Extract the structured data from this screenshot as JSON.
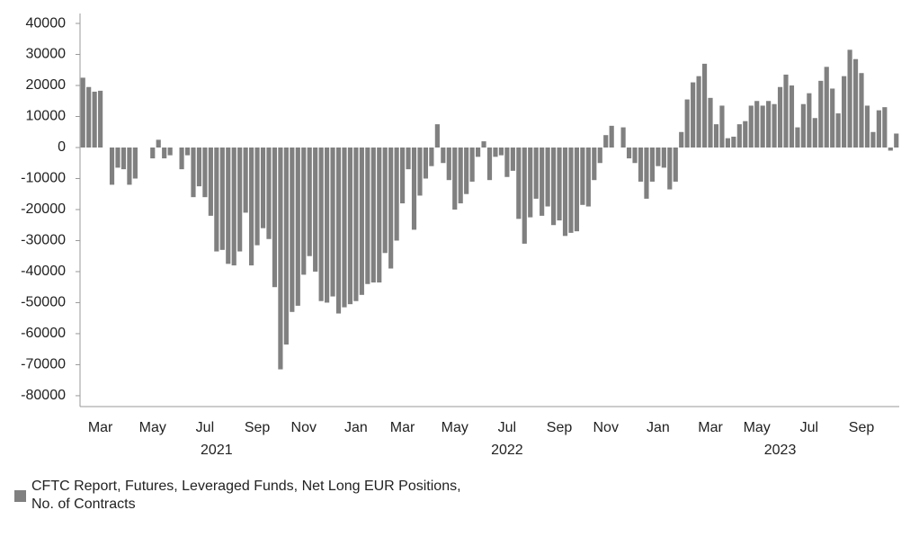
{
  "chart_data": {
    "type": "bar",
    "series": [
      {
        "name": "CFTC Report, Futures, Leveraged Funds, Net Long EUR Positions, No. of Contracts",
        "color": "#808080",
        "values": [
          22500,
          19500,
          18000,
          18300,
          0,
          -12000,
          -6500,
          -7000,
          -12000,
          -10000,
          0,
          0,
          -3500,
          2500,
          -3500,
          -2500,
          0,
          -7000,
          -2500,
          -16000,
          -12500,
          -16000,
          -22000,
          -33500,
          -33000,
          -37500,
          -38000,
          -33500,
          -21000,
          -38000,
          -31500,
          -26000,
          -29500,
          -45000,
          -71500,
          -63500,
          -53000,
          -51000,
          -41000,
          -35000,
          -40000,
          -49500,
          -50000,
          -48000,
          -53500,
          -51500,
          -50500,
          -49500,
          -47500,
          -44000,
          -43500,
          -43500,
          -34000,
          -39000,
          -30000,
          -18000,
          -7000,
          -26500,
          -15500,
          -10000,
          -6000,
          7500,
          -5000,
          -10500,
          -20000,
          -18000,
          -15000,
          -11000,
          -3000,
          2000,
          -10500,
          -3000,
          -2500,
          -9500,
          -7500,
          -23000,
          -31000,
          -22500,
          -16500,
          -22000,
          -19000,
          -25000,
          -23500,
          -28500,
          -27500,
          -27000,
          -18500,
          -19000,
          -10500,
          -5000,
          4000,
          7000,
          0,
          6500,
          -3500,
          -5000,
          -11000,
          -16500,
          -11000,
          -6000,
          -6500,
          -13500,
          -11000,
          5000,
          15500,
          21000,
          23000,
          27000,
          16000,
          7500,
          13500,
          3000,
          3500,
          7500,
          8500,
          13500,
          15000,
          13500,
          15000,
          14000,
          19500,
          23500,
          20000,
          6500,
          14000,
          17500,
          9500,
          21500,
          26000,
          19000,
          11000,
          23000,
          31500,
          28500,
          24000,
          13500,
          5000,
          12000,
          13000,
          -1000,
          4500
        ]
      }
    ],
    "categories": [
      null,
      null,
      null,
      "Mar",
      null,
      null,
      null,
      null,
      null,
      null,
      null,
      null,
      "May",
      null,
      null,
      null,
      null,
      null,
      null,
      null,
      null,
      "Jul",
      null,
      null,
      null,
      null,
      null,
      null,
      null,
      null,
      "Sep",
      null,
      null,
      null,
      null,
      null,
      null,
      null,
      "Nov",
      null,
      null,
      null,
      null,
      null,
      null,
      null,
      null,
      "Jan",
      null,
      null,
      null,
      null,
      null,
      null,
      null,
      "Mar",
      null,
      null,
      null,
      null,
      null,
      null,
      null,
      null,
      "May",
      null,
      null,
      null,
      null,
      null,
      null,
      null,
      null,
      "Jul",
      null,
      null,
      null,
      null,
      null,
      null,
      null,
      null,
      "Sep",
      null,
      null,
      null,
      null,
      null,
      null,
      null,
      "Nov",
      null,
      null,
      null,
      null,
      null,
      null,
      null,
      null,
      "Jan",
      null,
      null,
      null,
      null,
      null,
      null,
      null,
      null,
      "Mar",
      null,
      null,
      null,
      null,
      null,
      null,
      null,
      "May",
      null,
      null,
      null,
      null,
      null,
      null,
      null,
      null,
      "Jul",
      null,
      null,
      null,
      null,
      null,
      null,
      null,
      null,
      "Sep",
      null,
      null,
      null,
      null,
      null,
      null
    ],
    "category_groups": [
      null,
      null,
      null,
      null,
      null,
      null,
      null,
      null,
      null,
      null,
      null,
      null,
      null,
      null,
      null,
      null,
      null,
      null,
      null,
      null,
      null,
      null,
      null,
      "2021",
      null,
      null,
      null,
      null,
      null,
      null,
      null,
      null,
      null,
      null,
      null,
      null,
      null,
      null,
      null,
      null,
      null,
      null,
      null,
      null,
      null,
      null,
      null,
      null,
      null,
      null,
      null,
      null,
      null,
      null,
      null,
      null,
      null,
      null,
      null,
      null,
      null,
      null,
      null,
      null,
      null,
      null,
      null,
      null,
      null,
      null,
      null,
      null,
      null,
      "2022",
      null,
      null,
      null,
      null,
      null,
      null,
      null,
      null,
      null,
      null,
      null,
      null,
      null,
      null,
      null,
      null,
      null,
      null,
      null,
      null,
      null,
      null,
      null,
      null,
      null,
      null,
      null,
      null,
      null,
      null,
      null,
      null,
      null,
      null,
      null,
      null,
      null,
      null,
      null,
      null,
      null,
      null,
      null,
      null,
      null,
      null,
      "2023",
      null,
      null,
      null,
      null,
      null,
      null,
      null,
      null,
      null,
      null,
      null,
      null,
      null,
      null,
      null,
      null,
      null,
      null,
      null,
      null
    ],
    "ylim": [
      -83500,
      43200
    ],
    "yticks": [
      -80000,
      -70000,
      -60000,
      -50000,
      -40000,
      -30000,
      -20000,
      -10000,
      0,
      10000,
      20000,
      30000,
      40000
    ],
    "grid": false,
    "legend": "bottom-left"
  }
}
